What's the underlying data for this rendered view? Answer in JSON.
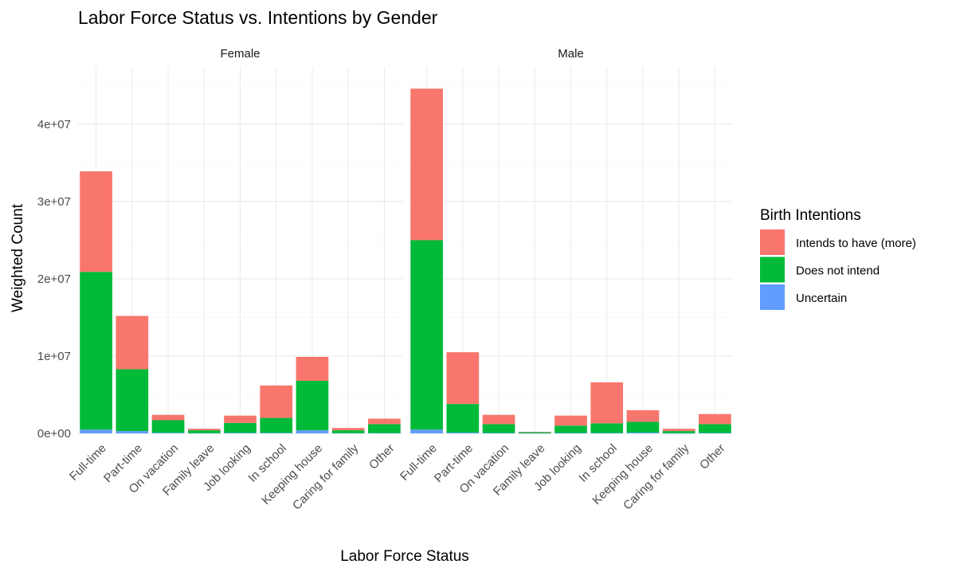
{
  "chart_data": {
    "type": "bar",
    "stacked": true,
    "title": "Labor Force Status vs. Intentions by Gender",
    "xlabel": "Labor Force Status",
    "ylabel": "Weighted Count",
    "ylim": [
      0,
      47000000
    ],
    "yticks": [
      {
        "value": 0,
        "label": "0e+00"
      },
      {
        "value": 10000000,
        "label": "1e+07"
      },
      {
        "value": 20000000,
        "label": "2e+07"
      },
      {
        "value": 30000000,
        "label": "3e+07"
      },
      {
        "value": 40000000,
        "label": "4e+07"
      }
    ],
    "grid": true,
    "categories": [
      "Full-time",
      "Part-time",
      "On vacation",
      "Family leave",
      "Job looking",
      "In school",
      "Keeping house",
      "Caring for family",
      "Other"
    ],
    "legend": {
      "title": "Birth Intentions",
      "position": "right",
      "entries": [
        {
          "label": "Intends to have (more)",
          "color": "#F8766D"
        },
        {
          "label": "Does not intend",
          "color": "#00BA38"
        },
        {
          "label": "Uncertain",
          "color": "#619CFF"
        }
      ]
    },
    "facets": [
      {
        "name": "Female",
        "series": [
          {
            "name": "Uncertain",
            "color": "#619CFF",
            "values": [
              500000,
              300000,
              80000,
              30000,
              60000,
              60000,
              400000,
              30000,
              40000
            ]
          },
          {
            "name": "Does not intend",
            "color": "#00BA38",
            "values": [
              20400000,
              8000000,
              1620000,
              370000,
              1290000,
              1940000,
              6400000,
              370000,
              1160000
            ]
          },
          {
            "name": "Intends to have (more)",
            "color": "#F8766D",
            "values": [
              13000000,
              6900000,
              700000,
              200000,
              950000,
              4200000,
              3100000,
              300000,
              700000
            ]
          }
        ]
      },
      {
        "name": "Male",
        "series": [
          {
            "name": "Uncertain",
            "color": "#619CFF",
            "values": [
              500000,
              100000,
              50000,
              20000,
              50000,
              50000,
              100000,
              20000,
              50000
            ]
          },
          {
            "name": "Does not intend",
            "color": "#00BA38",
            "values": [
              24500000,
              3700000,
              1150000,
              130000,
              950000,
              1250000,
              1400000,
              280000,
              1150000
            ]
          },
          {
            "name": "Intends to have (more)",
            "color": "#F8766D",
            "values": [
              19600000,
              6700000,
              1200000,
              50000,
              1300000,
              5300000,
              1500000,
              300000,
              1300000
            ]
          }
        ]
      }
    ]
  }
}
